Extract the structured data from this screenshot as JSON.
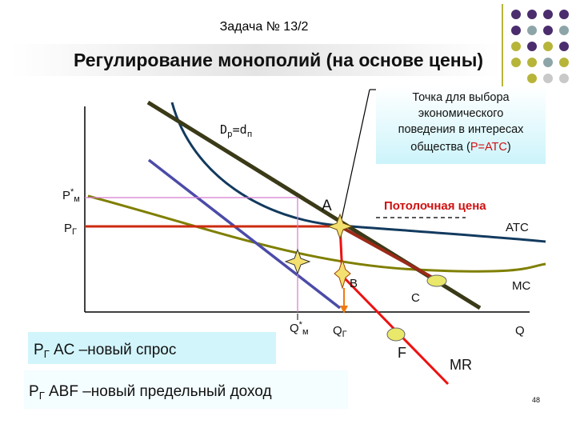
{
  "header": {
    "task": "Задача № 13/2",
    "title": "Регулирование монополий (на основе цены)"
  },
  "callout": {
    "lines": [
      "Точка для выбора",
      "экономического",
      "поведения в интересах",
      "общества ("
    ],
    "highlight": "P=ATC",
    "close": ")"
  },
  "labels": {
    "demand": [
      "D",
      "р",
      "=d",
      "п"
    ],
    "p_monopoly": [
      "P",
      "*",
      "м"
    ],
    "p_regulated": [
      "P",
      "Г"
    ],
    "point_a": "A",
    "ceiling": "Потолочная цена",
    "atc": "ATC",
    "point_b": "B",
    "point_c": "C",
    "mc": "MC",
    "q_monopoly": [
      "Q",
      "*",
      "м"
    ],
    "q_regulated": [
      "Q",
      "Г"
    ],
    "q": "Q",
    "point_f": "F",
    "mr": "MR"
  },
  "notes": {
    "new_demand": [
      "P",
      "Г",
      " AC –новый спрос"
    ],
    "new_mr": [
      "P",
      "Г",
      " ABF –новый предельный доход"
    ]
  },
  "page_number": "48"
}
